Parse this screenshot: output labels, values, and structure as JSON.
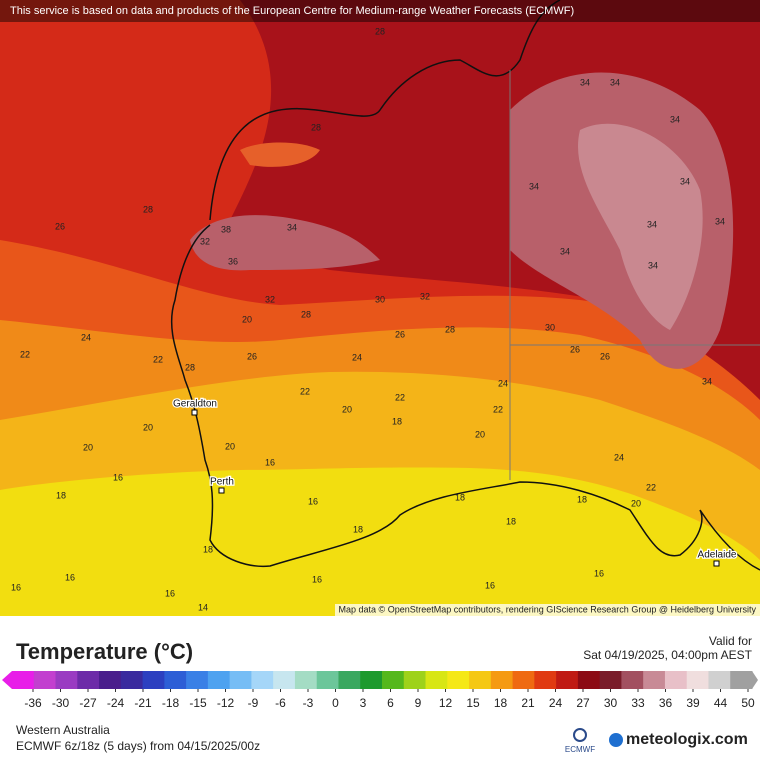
{
  "header": {
    "notice": "This service is based on data and products of the European Centre for Medium-range Weather Forecasts (ECMWF)"
  },
  "map": {
    "attribution": "Map data © OpenStreetMap contributors, rendering GIScience Research Group @ Heidelberg University",
    "cities": [
      "Geraldton",
      "Perth",
      "Adelaide"
    ],
    "contour_labels": [
      28,
      28,
      28,
      26,
      38,
      36,
      34,
      32,
      34,
      34,
      34,
      34,
      34,
      34,
      34,
      34,
      34,
      34,
      32,
      30,
      32,
      30,
      28,
      28,
      26,
      26,
      26,
      24,
      22,
      22,
      28,
      26,
      24,
      24,
      22,
      22,
      22,
      20,
      18,
      20,
      20,
      20,
      20,
      16,
      16,
      18,
      16,
      18,
      18,
      20,
      22,
      24,
      18,
      18,
      18,
      16,
      16,
      16,
      16,
      16,
      16,
      14,
      20
    ]
  },
  "legend": {
    "title": "Temperature (°C)",
    "valid_label": "Valid for",
    "valid_time": "Sat 04/19/2025, 04:00pm AEST",
    "ticks": [
      -36,
      -30,
      -27,
      -24,
      -21,
      -18,
      -15,
      -12,
      -9,
      -6,
      -3,
      0,
      3,
      6,
      9,
      12,
      15,
      18,
      21,
      24,
      27,
      30,
      33,
      36,
      39,
      44,
      50
    ],
    "colors": [
      "#e81ee8",
      "#c23fcf",
      "#9a3bc2",
      "#6d2ba8",
      "#4a1e8c",
      "#3a2a9e",
      "#2c3fc0",
      "#2d5ed6",
      "#3a80e6",
      "#4ea2f0",
      "#76bdf5",
      "#a5d6f8",
      "#c7e6ef",
      "#a4dcc4",
      "#6cc69a",
      "#3aa860",
      "#1e9a2e",
      "#55b81c",
      "#9ed21a",
      "#d8e614",
      "#f5e816",
      "#f5c814",
      "#f59a12",
      "#ef6a12",
      "#e03a12",
      "#c01a14",
      "#8c0a14",
      "#7a1c2a",
      "#a25060",
      "#c88a96",
      "#e8c0c8",
      "#f0dede",
      "#d0d0d0",
      "#a0a0a0"
    ]
  },
  "footer": {
    "region": "Western Australia",
    "model": "ECMWF 6z/18z (5 days)  from  04/15/2025/00z",
    "logo_small": "ECMWF",
    "brand": "meteologix.com"
  }
}
